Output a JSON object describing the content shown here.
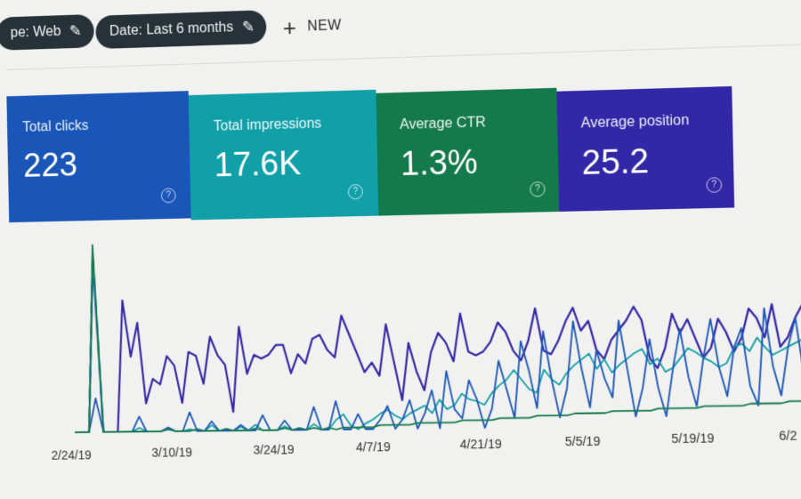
{
  "filters": {
    "type_chip": "pe: Web",
    "date_chip": "Date: Last 6 months",
    "new_label": "NEW"
  },
  "colors": {
    "clicks": "#1a56b8",
    "impressions": "#12a0a8",
    "ctr": "#147a4c",
    "position": "#3227a6",
    "chip_bg": "#263238"
  },
  "metrics": [
    {
      "label": "Total clicks",
      "value": "223",
      "color": "#1a56b8"
    },
    {
      "label": "Total impressions",
      "value": "17.6K",
      "color": "#12a0a8"
    },
    {
      "label": "Average CTR",
      "value": "1.3%",
      "color": "#147a4c"
    },
    {
      "label": "Average position",
      "value": "25.2",
      "color": "#3227a6"
    }
  ],
  "chart_data": {
    "type": "line",
    "x_tick_labels": [
      "2/24/19",
      "3/10/19",
      "3/24/19",
      "4/7/19",
      "4/21/19",
      "5/5/19",
      "5/19/19",
      "6/2"
    ],
    "series": [
      {
        "color": "#3227a6",
        "values": [
          0,
          0,
          0,
          92,
          0,
          0,
          0,
          70,
          40,
          58,
          15,
          28,
          25,
          40,
          35,
          15,
          42,
          40,
          25,
          50,
          40,
          35,
          10,
          55,
          30,
          40,
          38,
          40,
          45,
          45,
          30,
          40,
          35,
          48,
          50,
          42,
          38,
          60,
          50,
          40,
          30,
          35,
          28,
          55,
          35,
          15,
          45,
          30,
          20,
          40,
          50,
          45,
          35,
          60,
          40,
          38,
          40,
          45,
          55,
          50,
          40,
          35,
          45,
          62,
          40,
          38,
          45,
          55,
          62,
          50,
          55,
          40,
          35,
          45,
          50,
          55,
          62,
          55,
          35,
          30,
          40,
          58,
          48,
          55,
          45,
          35,
          40,
          55,
          48,
          38,
          45,
          60,
          55,
          45,
          62,
          40,
          45,
          55,
          62,
          58
        ]
      },
      {
        "color": "#12a0a8",
        "values": [
          0,
          0,
          0,
          95,
          0,
          0,
          0,
          0,
          0,
          2,
          0,
          0,
          0,
          2,
          0,
          0,
          1,
          0,
          0,
          3,
          0,
          0,
          0,
          2,
          0,
          3,
          0,
          0,
          0,
          2,
          0,
          0,
          0,
          3,
          0,
          0,
          5,
          8,
          2,
          0,
          3,
          5,
          8,
          10,
          7,
          5,
          8,
          10,
          12,
          8,
          15,
          10,
          12,
          18,
          15,
          14,
          12,
          18,
          22,
          25,
          30,
          25,
          20,
          18,
          30,
          25,
          22,
          28,
          32,
          35,
          38,
          30,
          35,
          28,
          32,
          35,
          38,
          40,
          32,
          35,
          28,
          30,
          35,
          40,
          38,
          35,
          33,
          30,
          32,
          40,
          42,
          38,
          45,
          40,
          36,
          38,
          40,
          42,
          44,
          45
        ]
      },
      {
        "color": "#1a56b8",
        "values": [
          0,
          0,
          0,
          18,
          0,
          0,
          0,
          0,
          0,
          8,
          0,
          0,
          0,
          2,
          0,
          0,
          10,
          0,
          0,
          5,
          0,
          0,
          0,
          3,
          0,
          0,
          8,
          0,
          0,
          5,
          0,
          0,
          0,
          12,
          0,
          0,
          15,
          0,
          0,
          8,
          0,
          0,
          5,
          12,
          0,
          5,
          15,
          0,
          8,
          20,
          0,
          30,
          10,
          5,
          25,
          15,
          0,
          10,
          35,
          20,
          5,
          45,
          30,
          10,
          50,
          25,
          5,
          20,
          55,
          30,
          10,
          40,
          25,
          15,
          55,
          30,
          5,
          20,
          45,
          20,
          5,
          30,
          50,
          25,
          10,
          35,
          55,
          30,
          15,
          40,
          50,
          20,
          10,
          60,
          30,
          15,
          40,
          55,
          25,
          10
        ]
      },
      {
        "color": "#147a4c",
        "values": [
          0,
          0,
          0,
          100,
          0,
          0,
          0,
          0,
          0,
          0,
          0,
          0,
          0,
          1,
          0,
          0,
          0,
          1,
          0,
          0,
          0,
          1,
          0,
          0,
          0,
          1,
          0,
          0,
          0,
          1,
          0,
          1,
          0,
          1,
          0,
          1,
          0,
          1,
          1,
          1,
          1,
          1,
          2,
          2,
          2,
          2,
          2,
          3,
          3,
          3,
          3,
          3,
          3,
          4,
          4,
          4,
          4,
          4,
          5,
          5,
          5,
          5,
          5,
          6,
          6,
          6,
          6,
          6,
          7,
          7,
          7,
          7,
          7,
          8,
          8,
          8,
          8,
          8,
          8,
          9,
          9,
          9,
          9,
          9,
          9,
          10,
          10,
          10,
          10,
          10,
          10,
          11,
          11,
          11,
          11,
          11,
          12,
          12,
          12,
          12
        ]
      }
    ],
    "ylim": [
      0,
      100
    ]
  }
}
